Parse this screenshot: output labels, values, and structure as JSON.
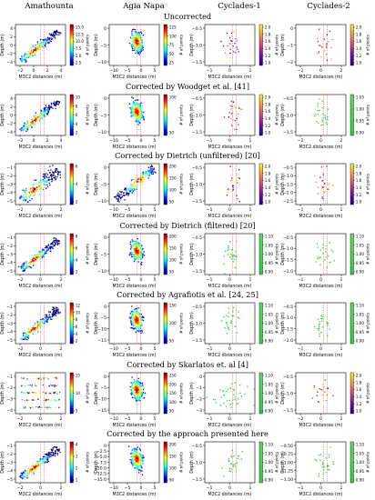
{
  "columns": [
    "Amathounta",
    "Agia Napa",
    "Cyclades-1",
    "Cyclades-2"
  ],
  "chart_data": {
    "type": "scatter",
    "xlabel": "M3C2 distances (m)",
    "ylabel": "Depth (m)",
    "colorbar_label": "# of points",
    "rows": [
      {
        "title": "Uncorrected",
        "panels": [
          {
            "dataset": "Amathounta",
            "xticks": [
              "−2",
              "0",
              "2",
              "4"
            ],
            "yticks": [
              "4",
              "2",
              "0",
              "−2",
              "−4"
            ],
            "cbar_ticks": [
              "15.0",
              "12.5",
              "10.0",
              "7.5",
              "5.0",
              "2.5"
            ],
            "cmap": "jet",
            "shape": "diag-dense"
          },
          {
            "dataset": "Agia Napa",
            "xticks": [
              "−10",
              "−5",
              "0",
              "5"
            ],
            "yticks": [
              "0",
              "−5",
              "−10"
            ],
            "cbar_ticks": [
              "125",
              "100",
              "75",
              "50",
              "25"
            ],
            "cmap": "jet",
            "shape": "blob"
          },
          {
            "dataset": "Cyclades-1",
            "xticks": [
              "−1",
              "0",
              "1"
            ],
            "yticks": [
              "−0.5",
              "−1.0",
              "−1.5"
            ],
            "cbar_ticks": [
              "2.0",
              "1.8",
              "1.6",
              "1.4",
              "1.2",
              "1.0"
            ],
            "cmap": "plasma",
            "shape": "sparse"
          },
          {
            "dataset": "Cyclades-2",
            "xticks": [
              "−2",
              "0",
              "2"
            ],
            "yticks": [
              "0",
              "−1",
              "−2"
            ],
            "cbar_ticks": [
              "2.0",
              "1.8",
              "1.6",
              "1.4",
              "1.2",
              "1.0"
            ],
            "cmap": "plasma",
            "shape": "sparse"
          }
        ]
      },
      {
        "title": "Corrected by Woodget et al. [41]",
        "panels": [
          {
            "dataset": "Amathounta",
            "xticks": [
              "−2",
              "0",
              "2",
              "4"
            ],
            "yticks": [
              "4",
              "2",
              "0",
              "−2",
              "−4"
            ],
            "cbar_ticks": [
              "10",
              "8",
              "6",
              "4",
              "2"
            ],
            "cmap": "jet",
            "shape": "diag"
          },
          {
            "dataset": "Agia Napa",
            "xticks": [
              "−10",
              "−5",
              "0",
              "5"
            ],
            "yticks": [
              "0",
              "−5",
              "−10"
            ],
            "cbar_ticks": [
              "100",
              "50"
            ],
            "cmap": "jet",
            "shape": "blob"
          },
          {
            "dataset": "Cyclades-1",
            "xticks": [
              "−1",
              "0",
              "1"
            ],
            "yticks": [
              "−0.5",
              "−1.0",
              "−1.5"
            ],
            "cbar_ticks": [
              "2.0",
              "1.8",
              "1.6",
              "1.4",
              "1.2",
              "1.0"
            ],
            "cmap": "plasma",
            "shape": "sparse"
          },
          {
            "dataset": "Cyclades-2",
            "xticks": [
              "−2",
              "0",
              "2"
            ],
            "yticks": [
              "−0.5",
              "−1.0",
              "−1.5"
            ],
            "cbar_ticks": [
              "1.05",
              "1.00",
              "0.95",
              "0.90"
            ],
            "cmap": "green",
            "shape": "sparse"
          }
        ]
      },
      {
        "title": "Corrected by Dietrich (unfiltered) [20]",
        "panels": [
          {
            "dataset": "Amathounta",
            "xticks": [
              "−2",
              "0",
              "2"
            ],
            "yticks": [
              "−1",
              "−2",
              "−3",
              "−4",
              "−5"
            ],
            "cbar_ticks": [
              "6",
              "4",
              "2"
            ],
            "cmap": "jet",
            "shape": "diag-wide"
          },
          {
            "dataset": "Agia Napa",
            "xticks": [
              "−10",
              "−5",
              "0",
              "5"
            ],
            "yticks": [
              "0",
              "−5",
              "−10"
            ],
            "cbar_ticks": [
              "200",
              "150",
              "100",
              "50"
            ],
            "cmap": "jet",
            "shape": "diag-long"
          },
          {
            "dataset": "Cyclades-1",
            "xticks": [
              "−1",
              "0",
              "1"
            ],
            "yticks": [
              "−0.5",
              "−1.0",
              "−1.5"
            ],
            "cbar_ticks": [
              "2.0",
              "1.8",
              "1.6",
              "1.4",
              "1.2",
              "1.0"
            ],
            "cmap": "plasma",
            "shape": "sparse"
          },
          {
            "dataset": "Cyclades-2",
            "xticks": [
              "−1",
              "0",
              "1"
            ],
            "yticks": [
              "−0.5",
              "−1.0",
              "−1.5",
              "−2.0",
              "−2.5"
            ],
            "cbar_ticks": [
              "2.0",
              "1.8",
              "1.6",
              "1.4",
              "1.2",
              "1.0"
            ],
            "cmap": "plasma",
            "shape": "sparse"
          }
        ]
      },
      {
        "title": "Corrected by Dietrich (filtered) [20]",
        "panels": [
          {
            "dataset": "Amathounta",
            "xticks": [
              "−2",
              "0",
              "2"
            ],
            "yticks": [
              "−1",
              "−2",
              "−3",
              "−4",
              "−5"
            ],
            "cbar_ticks": [
              "8",
              "6",
              "4",
              "2"
            ],
            "cmap": "jet",
            "shape": "diag"
          },
          {
            "dataset": "Agia Napa",
            "xticks": [
              "−10",
              "−5",
              "0",
              "5"
            ],
            "yticks": [
              "0",
              "−5",
              "−10"
            ],
            "cbar_ticks": [
              "200",
              "150",
              "100",
              "50"
            ],
            "cmap": "jet",
            "shape": "blob"
          },
          {
            "dataset": "Cyclades-1",
            "xticks": [
              "−1",
              "0",
              "1"
            ],
            "yticks": [
              "−0.5",
              "−1.0",
              "−1.5"
            ],
            "cbar_ticks": [
              "1.10",
              "1.05",
              "1.00",
              "0.95",
              "0.90"
            ],
            "cmap": "green",
            "shape": "sparse"
          },
          {
            "dataset": "Cyclades-2",
            "xticks": [
              "−1",
              "0",
              "1"
            ],
            "yticks": [
              "−0.5",
              "−1.0",
              "−1.5",
              "−2.0"
            ],
            "cbar_ticks": [
              "1.10",
              "1.05",
              "1.00",
              "0.95",
              "0.90"
            ],
            "cmap": "green",
            "shape": "sparse"
          }
        ]
      },
      {
        "title": "Corrected by Agrafiotis et al. [24, 25]",
        "panels": [
          {
            "dataset": "Amathounta",
            "xticks": [
              "−2",
              "0",
              "2"
            ],
            "yticks": [
              "−1",
              "−2",
              "−3",
              "−4",
              "−5"
            ],
            "cbar_ticks": [
              "12",
              "10",
              "8",
              "6",
              "4",
              "2"
            ],
            "cmap": "jet",
            "shape": "diag"
          },
          {
            "dataset": "Agia Napa",
            "xticks": [
              "−10",
              "−5",
              "0",
              "5"
            ],
            "yticks": [
              "0",
              "−5",
              "−10",
              "−15"
            ],
            "cbar_ticks": [
              "150",
              "100",
              "50"
            ],
            "cmap": "jet",
            "shape": "blob"
          },
          {
            "dataset": "Cyclades-1",
            "xticks": [
              "−1",
              "0",
              "1"
            ],
            "yticks": [
              "−0.5",
              "−1.0",
              "−1.5"
            ],
            "cbar_ticks": [
              "1.10",
              "1.05",
              "1.00",
              "0.95",
              "0.90"
            ],
            "cmap": "green",
            "shape": "sparse"
          },
          {
            "dataset": "Cyclades-2",
            "xticks": [
              "−1",
              "0",
              "1"
            ],
            "yticks": [
              "−0.5",
              "−1.0",
              "−1.5",
              "−2.0"
            ],
            "cbar_ticks": [
              "1.10",
              "1.05",
              "1.00",
              "0.95",
              "0.90"
            ],
            "cmap": "green",
            "shape": "sparse"
          }
        ]
      },
      {
        "title": "Corrected by Skarlatos et. al [4]",
        "panels": [
          {
            "dataset": "Amathounta",
            "xticks": [
              "−2",
              "0",
              "2"
            ],
            "yticks": [
              "−1",
              "−2",
              "−3",
              "−4"
            ],
            "cbar_ticks": [
              "15",
              "10",
              "5"
            ],
            "cmap": "jet",
            "shape": "bands"
          },
          {
            "dataset": "Agia Napa",
            "xticks": [
              "−10",
              "−5",
              "0",
              "5"
            ],
            "yticks": [
              "0",
              "−5",
              "−10",
              "−15"
            ],
            "cbar_ticks": [
              "250",
              "200",
              "150",
              "100",
              "50"
            ],
            "cmap": "jet",
            "shape": "blob"
          },
          {
            "dataset": "Cyclades-1",
            "xticks": [
              "−1",
              "0",
              "1"
            ],
            "yticks": [
              "0",
              "−1",
              "−2",
              "−3"
            ],
            "cbar_ticks": [
              "1.10",
              "1.05",
              "1.00",
              "0.95",
              "0.90"
            ],
            "cmap": "green",
            "shape": "sparse-wide"
          },
          {
            "dataset": "Cyclades-2",
            "xticks": [
              "−2",
              "0",
              "2"
            ],
            "yticks": [
              "−0.5",
              "−1.0",
              "−1.5"
            ],
            "cbar_ticks": [
              "2.0",
              "1.8",
              "1.6",
              "1.4",
              "1.2",
              "1.0"
            ],
            "cmap": "plasma",
            "shape": "sparse"
          }
        ]
      },
      {
        "title": "Corrected by the approach presented here",
        "panels": [
          {
            "dataset": "Amathounta",
            "xticks": [
              "−2",
              "0",
              "2"
            ],
            "yticks": [
              "−1",
              "−2",
              "−3",
              "−4",
              "−5"
            ],
            "cbar_ticks": [
              "4",
              "3",
              "2",
              "1"
            ],
            "cmap": "jet",
            "shape": "diag"
          },
          {
            "dataset": "Agia Napa",
            "xticks": [
              "−10",
              "−5",
              "0",
              "5"
            ],
            "yticks": [
              "0",
              "−2.5",
              "−5.0",
              "−7.5",
              "−10.0",
              "−12.5",
              "−15.0"
            ],
            "cbar_ticks": [
              "200",
              "150",
              "100",
              "50"
            ],
            "cmap": "jet",
            "shape": "blob"
          },
          {
            "dataset": "Cyclades-1",
            "xticks": [
              "−1",
              "0",
              "1"
            ],
            "yticks": [
              "−0.5",
              "−1.0",
              "−1.5"
            ],
            "cbar_ticks": [
              "1.10",
              "1.05",
              "1.00",
              "0.95",
              "0.90"
            ],
            "cmap": "green",
            "shape": "sparse"
          },
          {
            "dataset": "Cyclades-2",
            "xticks": [
              "−1",
              "0",
              "1"
            ],
            "yticks": [
              "−0.50",
              "−0.75",
              "−1.00",
              "−1.25",
              "−1.50"
            ],
            "cbar_ticks": [
              "1.10",
              "1.05",
              "1.00",
              "0.95",
              "0.90"
            ],
            "cmap": "green",
            "shape": "sparse"
          }
        ]
      }
    ]
  }
}
